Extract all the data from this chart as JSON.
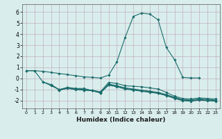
{
  "xlabel": "Humidex (Indice chaleur)",
  "ylabel": "",
  "xlim": [
    -0.5,
    23.5
  ],
  "ylim": [
    -2.7,
    6.7
  ],
  "yticks": [
    -2,
    -1,
    0,
    1,
    2,
    3,
    4,
    5,
    6
  ],
  "xticks": [
    0,
    1,
    2,
    3,
    4,
    5,
    6,
    7,
    8,
    9,
    10,
    11,
    12,
    13,
    14,
    15,
    16,
    17,
    18,
    19,
    20,
    21,
    22,
    23
  ],
  "background_color": "#d9eeec",
  "grid_color": "#c0afc0",
  "line_color": "#1a6b6b",
  "lines": [
    {
      "x": [
        0,
        1,
        2,
        3,
        4,
        5,
        6,
        7,
        8,
        9,
        10,
        11,
        12,
        13,
        14,
        15,
        16,
        17,
        18,
        19,
        20,
        21
      ],
      "y": [
        0.7,
        0.7,
        0.65,
        0.55,
        0.45,
        0.35,
        0.25,
        0.15,
        0.1,
        0.05,
        0.3,
        1.5,
        3.7,
        5.6,
        5.9,
        5.8,
        5.3,
        2.8,
        1.7,
        0.1,
        0.05,
        0.05
      ]
    },
    {
      "x": [
        0,
        1,
        2,
        3,
        4,
        5,
        6,
        7,
        8,
        9,
        10,
        11,
        12,
        13,
        14,
        15,
        16,
        17,
        18,
        19,
        20,
        21,
        22,
        23
      ],
      "y": [
        0.7,
        0.7,
        -0.3,
        -0.55,
        -1.0,
        -0.8,
        -0.9,
        -0.9,
        -1.1,
        -1.2,
        -0.35,
        -0.45,
        -0.65,
        -0.7,
        -0.75,
        -0.85,
        -0.95,
        -1.25,
        -1.6,
        -1.8,
        -1.85,
        -1.75,
        -1.8,
        -1.85
      ]
    },
    {
      "x": [
        2,
        3,
        4,
        5,
        6,
        7,
        8,
        9,
        10,
        11,
        12,
        13,
        14,
        15,
        16,
        17,
        18,
        19,
        20,
        21,
        22,
        23
      ],
      "y": [
        -0.3,
        -0.65,
        -1.0,
        -0.85,
        -0.95,
        -1.05,
        -1.1,
        -1.3,
        -0.5,
        -0.65,
        -0.85,
        -0.95,
        -1.05,
        -1.15,
        -1.25,
        -1.45,
        -1.7,
        -1.9,
        -1.95,
        -1.85,
        -1.9,
        -1.95
      ]
    },
    {
      "x": [
        3,
        4,
        5,
        6,
        7,
        8,
        9,
        10,
        11,
        12,
        13,
        14,
        15,
        16,
        17,
        18,
        19,
        20,
        21,
        22,
        23
      ],
      "y": [
        -0.55,
        -1.05,
        -0.85,
        -0.95,
        -1.0,
        -1.05,
        -1.25,
        -0.55,
        -0.7,
        -0.9,
        -1.0,
        -1.1,
        -1.2,
        -1.3,
        -1.5,
        -1.75,
        -1.95,
        -2.0,
        -1.9,
        -1.95,
        -2.0
      ]
    },
    {
      "x": [
        4,
        5,
        6,
        7,
        8,
        9,
        10,
        11,
        12,
        13,
        14,
        15,
        16,
        17,
        18,
        19,
        20,
        21,
        22,
        23
      ],
      "y": [
        -1.05,
        -0.9,
        -1.0,
        -1.05,
        -1.1,
        -1.3,
        -0.6,
        -0.75,
        -0.95,
        -1.05,
        -1.15,
        -1.25,
        -1.35,
        -1.55,
        -1.8,
        -2.0,
        -2.05,
        -1.95,
        -2.0,
        -2.05
      ]
    }
  ]
}
